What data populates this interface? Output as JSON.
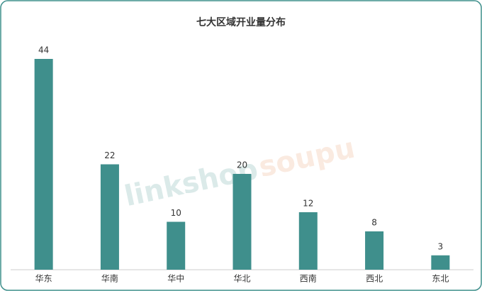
{
  "chart_data": {
    "type": "bar",
    "title": "七大区域开业量分布",
    "categories": [
      "华东",
      "华南",
      "华中",
      "华北",
      "西南",
      "西北",
      "东北"
    ],
    "values": [
      44,
      22,
      10,
      20,
      12,
      8,
      3
    ],
    "color": "#3f8f8c",
    "annotations": [
      "linkshop",
      "soupu"
    ]
  }
}
